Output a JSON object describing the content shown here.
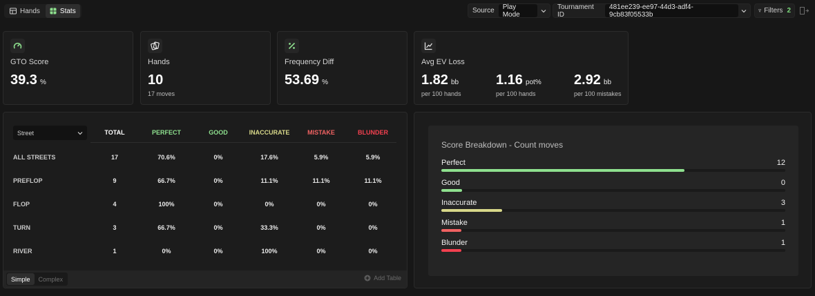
{
  "topbar": {
    "tabs": [
      {
        "label": "Hands",
        "active": false,
        "icon": "table-icon"
      },
      {
        "label": "Stats",
        "active": true,
        "icon": "stats-grid-icon"
      }
    ],
    "source": {
      "label": "Source",
      "value": "Play Mode"
    },
    "tournament": {
      "label": "Tournament ID",
      "value": "481ee239-ee97-44d3-adf4-9cb83f05533b"
    },
    "filters": {
      "label": "Filters",
      "count": "2"
    }
  },
  "cards": {
    "gto": {
      "title": "GTO Score",
      "value": "39.3",
      "unit": "%",
      "icon": "gauge-icon"
    },
    "hands": {
      "title": "Hands",
      "value": "10",
      "sub": "17 moves",
      "icon": "cards-icon"
    },
    "freq": {
      "title": "Frequency Diff",
      "value": "53.69",
      "unit": "%",
      "icon": "percent-icon"
    },
    "ev": {
      "title": "Avg EV Loss",
      "icon": "line-chart-icon",
      "metrics": [
        {
          "value": "1.82",
          "unit": "bb",
          "sub": "per 100 hands"
        },
        {
          "value": "1.16",
          "unit": "pot%",
          "sub": "per 100 hands"
        },
        {
          "value": "2.92",
          "unit": "bb",
          "sub": "per 100 mistakes"
        }
      ]
    }
  },
  "table": {
    "street_select": "Street",
    "columns": [
      {
        "label": "TOTAL",
        "color": "#ffffff"
      },
      {
        "label": "PERFECT",
        "color": "#8ee08e"
      },
      {
        "label": "GOOD",
        "color": "#8ee08e"
      },
      {
        "label": "INACCURATE",
        "color": "#d7d789"
      },
      {
        "label": "MISTAKE",
        "color": "#f06262"
      },
      {
        "label": "BLUNDER",
        "color": "#f2404f"
      }
    ],
    "rows": [
      {
        "label": "ALL STREETS",
        "cells": [
          "17",
          "70.6%",
          "0%",
          "17.6%",
          "5.9%",
          "5.9%"
        ]
      },
      {
        "label": "PREFLOP",
        "cells": [
          "9",
          "66.7%",
          "0%",
          "11.1%",
          "11.1%",
          "11.1%"
        ]
      },
      {
        "label": "FLOP",
        "cells": [
          "4",
          "100%",
          "0%",
          "0%",
          "0%",
          "0%"
        ]
      },
      {
        "label": "TURN",
        "cells": [
          "3",
          "66.7%",
          "0%",
          "33.3%",
          "0%",
          "0%"
        ]
      },
      {
        "label": "RIVER",
        "cells": [
          "1",
          "0%",
          "0%",
          "100%",
          "0%",
          "0%"
        ]
      }
    ],
    "modes": [
      {
        "label": "Simple",
        "active": true
      },
      {
        "label": "Complex",
        "active": false
      }
    ],
    "add_table": "Add Table"
  },
  "breakdown": {
    "title": "Score Breakdown - Count moves",
    "total": 17,
    "rows": [
      {
        "label": "Perfect",
        "count": 12,
        "color": "#8ee08e"
      },
      {
        "label": "Good",
        "count": 0,
        "color": "#8ee08e"
      },
      {
        "label": "Inaccurate",
        "count": 3,
        "color": "#d7d789"
      },
      {
        "label": "Mistake",
        "count": 1,
        "color": "#f06262"
      },
      {
        "label": "Blunder",
        "count": 1,
        "color": "#f2404f"
      }
    ]
  }
}
